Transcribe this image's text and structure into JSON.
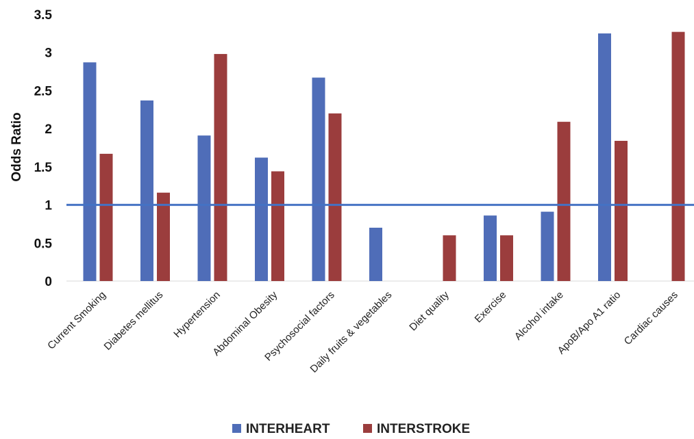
{
  "chart_data": {
    "type": "bar",
    "title": "",
    "xlabel": "",
    "ylabel": "Odds Ratio",
    "ylim": [
      0,
      3.5
    ],
    "yticks": [
      "0",
      "0.5",
      "1",
      "1.5",
      "2",
      "2.5",
      "3",
      "3.5"
    ],
    "grid": false,
    "legend": "bottom",
    "reference_line": {
      "y": 1,
      "color": "#4472C4"
    },
    "categories": [
      "Current Smoking",
      "Diabetes mellitus",
      "Hypertension",
      "Abdominal Obesity",
      "Psychosocial factors",
      "Daily fruits & vegetables",
      "Diet quality",
      "Exercise",
      "Alcohol intake",
      "ApoB/Apo A1 ratio",
      "Cardiac causes"
    ],
    "series": [
      {
        "name": "INTERHEART",
        "color": "#4F6DB8",
        "values": [
          2.87,
          2.37,
          1.91,
          1.62,
          2.67,
          0.7,
          null,
          0.86,
          0.91,
          3.25,
          null
        ]
      },
      {
        "name": "INTERSTROKE",
        "color": "#9B3D3D",
        "values": [
          1.67,
          1.16,
          2.98,
          1.44,
          2.2,
          null,
          0.6,
          0.6,
          2.09,
          1.84,
          3.27
        ]
      }
    ]
  }
}
